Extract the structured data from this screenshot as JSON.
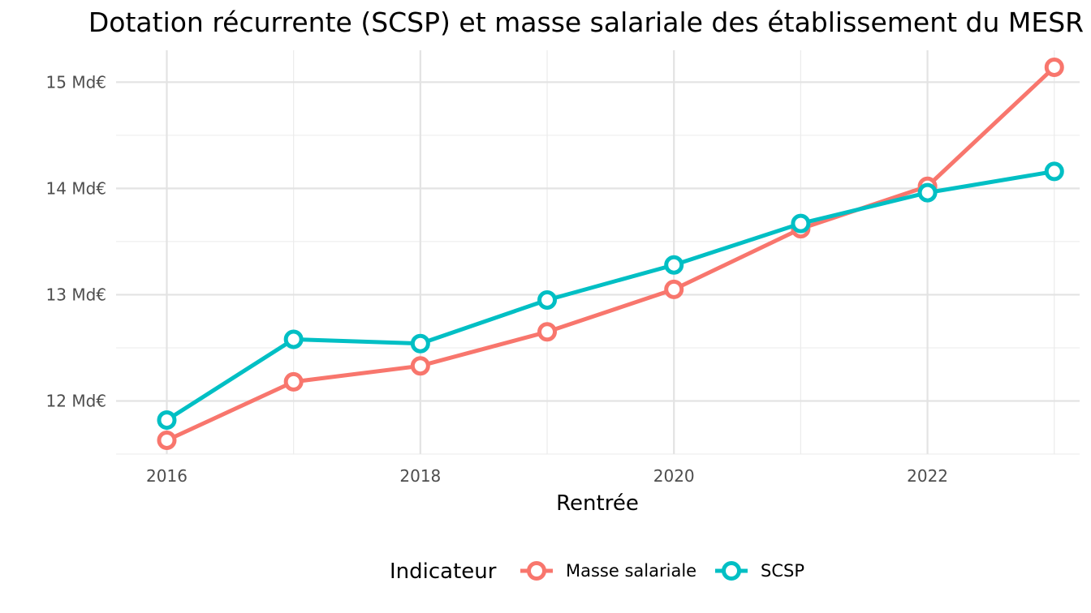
{
  "chart_data": {
    "type": "line",
    "title": "Dotation récurrente (SCSP) et masse salariale des établissement du MESR",
    "xlabel": "Rentrée",
    "ylabel": "",
    "x": [
      2016,
      2017,
      2018,
      2019,
      2020,
      2021,
      2022,
      2023
    ],
    "xticks": [
      2016,
      2018,
      2020,
      2022
    ],
    "xtick_labels": [
      "2016",
      "2018",
      "2020",
      "2022"
    ],
    "xlim": [
      2015.6,
      2023.2
    ],
    "yticks": [
      12,
      13,
      14,
      15
    ],
    "ytick_labels": [
      "12 Md€",
      "13 Md€",
      "14 Md€",
      "15 Md€"
    ],
    "ylim": [
      11.5,
      15.3
    ],
    "grid": true,
    "legend": {
      "title": "Indicateur",
      "position": "bottom"
    },
    "series": [
      {
        "name": "Masse salariale",
        "color": "#F8766D",
        "values": [
          11.63,
          12.18,
          12.33,
          12.65,
          13.05,
          13.62,
          14.02,
          15.14
        ]
      },
      {
        "name": "SCSP",
        "color": "#00BFC4",
        "values": [
          11.82,
          12.58,
          12.54,
          12.95,
          13.28,
          13.67,
          13.96,
          14.16
        ]
      }
    ]
  }
}
